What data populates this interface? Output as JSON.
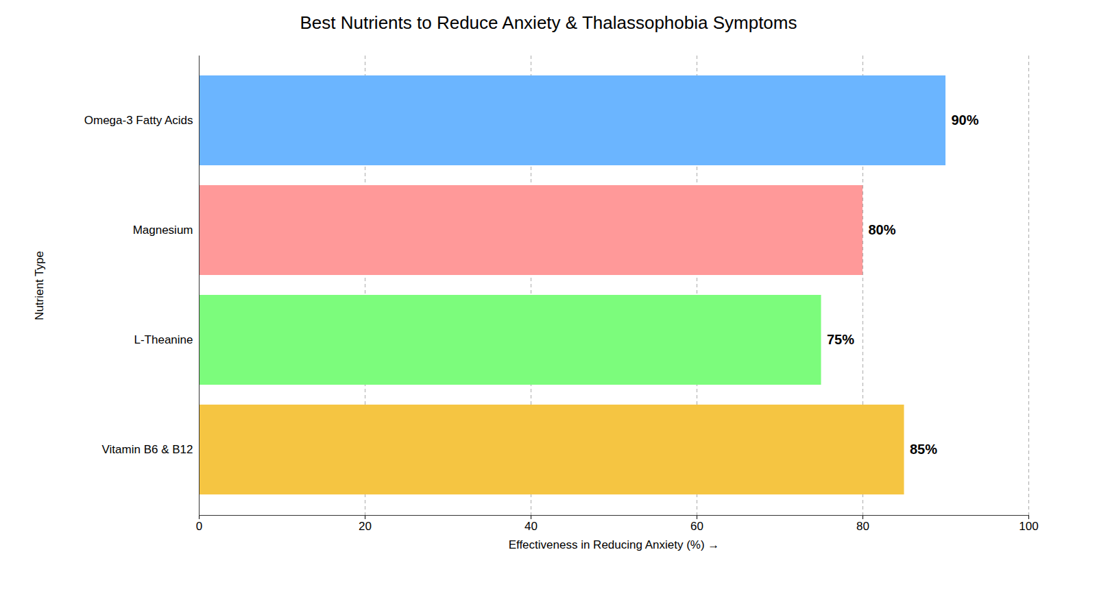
{
  "chart_data": {
    "type": "bar",
    "orientation": "horizontal",
    "title": "Best Nutrients to Reduce Anxiety & Thalassophobia Symptoms",
    "categories": [
      "Vitamin B6 & B12",
      "L-Theanine",
      "Magnesium",
      "Omega-3 Fatty Acids"
    ],
    "values": [
      85,
      75,
      80,
      90
    ],
    "value_labels": [
      "85%",
      "75%",
      "80%",
      "90%"
    ],
    "data_labels": true,
    "colors": [
      "#F5C542",
      "#7CFC7C",
      "#FF9999",
      "#6BB5FF"
    ],
    "xlabel": "Effectiveness in Reducing Anxiety (%)",
    "ylabel": "Nutrient Type",
    "xlim": [
      0,
      100
    ],
    "xticks": [
      0,
      20,
      40,
      60,
      80,
      100
    ],
    "grid": true
  }
}
